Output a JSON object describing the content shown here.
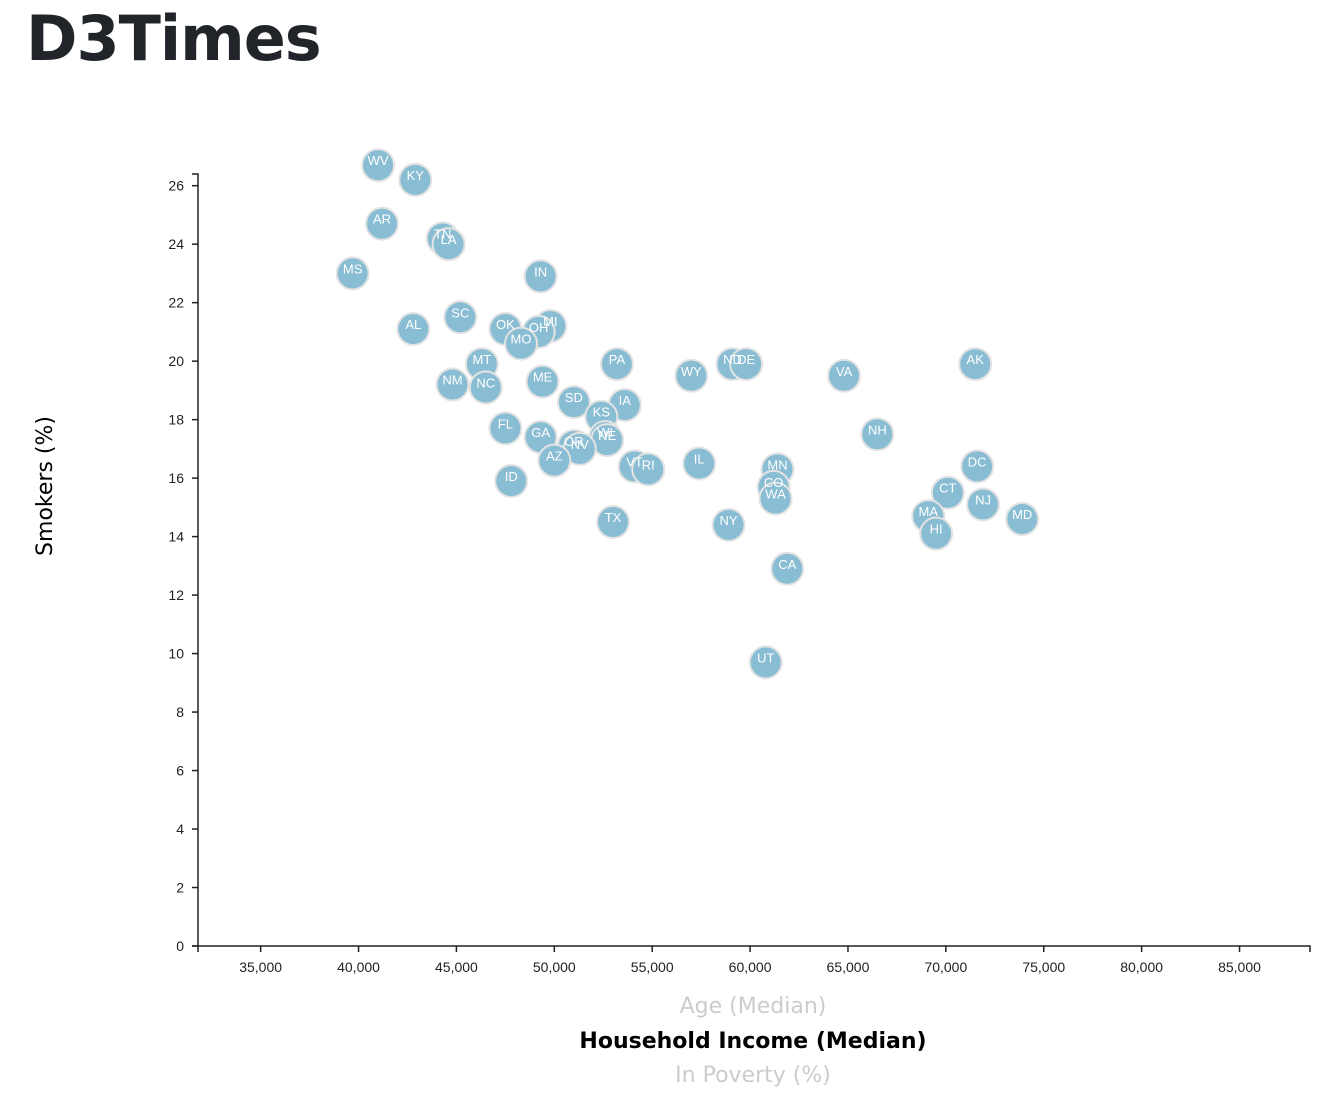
{
  "page": {
    "title": "D3Times"
  },
  "chart_data": {
    "type": "scatter",
    "x_axis_options": [
      {
        "label": "Age (Median)",
        "active": false
      },
      {
        "label": "Household Income (Median)",
        "active": true
      },
      {
        "label": "In Poverty (%)",
        "active": false
      }
    ],
    "ylabel": "Smokers (%)",
    "xlim": [
      31800,
      88600
    ],
    "ylim": [
      0,
      26.4
    ],
    "x_ticks": [
      35000,
      40000,
      45000,
      50000,
      55000,
      60000,
      65000,
      70000,
      75000,
      80000,
      85000
    ],
    "x_tick_labels": [
      "35,000",
      "40,000",
      "45,000",
      "50,000",
      "55,000",
      "60,000",
      "65,000",
      "70,000",
      "75,000",
      "80,000",
      "85,000"
    ],
    "y_ticks": [
      0,
      2,
      4,
      6,
      8,
      10,
      12,
      14,
      16,
      18,
      20,
      22,
      24,
      26
    ],
    "y_tick_labels": [
      "0",
      "2",
      "4",
      "6",
      "8",
      "10",
      "12",
      "14",
      "16",
      "18",
      "20",
      "22",
      "24",
      "26"
    ],
    "marker_color": "#89bdd3",
    "points": [
      {
        "label": "WV",
        "x": 41000,
        "y": 26.7
      },
      {
        "label": "KY",
        "x": 42900,
        "y": 26.2
      },
      {
        "label": "AR",
        "x": 41200,
        "y": 24.7
      },
      {
        "label": "TN",
        "x": 44300,
        "y": 24.2
      },
      {
        "label": "LA",
        "x": 44600,
        "y": 24.0
      },
      {
        "label": "MS",
        "x": 39700,
        "y": 23.0
      },
      {
        "label": "IN",
        "x": 49300,
        "y": 22.9
      },
      {
        "label": "SC",
        "x": 45200,
        "y": 21.5
      },
      {
        "label": "AL",
        "x": 42800,
        "y": 21.1
      },
      {
        "label": "OK",
        "x": 47500,
        "y": 21.1
      },
      {
        "label": "MI",
        "x": 49800,
        "y": 21.2
      },
      {
        "label": "OH",
        "x": 49200,
        "y": 21.0
      },
      {
        "label": "MO",
        "x": 48300,
        "y": 20.6
      },
      {
        "label": "MT",
        "x": 46300,
        "y": 19.9
      },
      {
        "label": "PA",
        "x": 53200,
        "y": 19.9
      },
      {
        "label": "ND",
        "x": 59100,
        "y": 19.9
      },
      {
        "label": "DE",
        "x": 59800,
        "y": 19.9
      },
      {
        "label": "AK",
        "x": 71500,
        "y": 19.9
      },
      {
        "label": "WY",
        "x": 57000,
        "y": 19.5
      },
      {
        "label": "VA",
        "x": 64800,
        "y": 19.5
      },
      {
        "label": "NM",
        "x": 44800,
        "y": 19.2
      },
      {
        "label": "NC",
        "x": 46500,
        "y": 19.1
      },
      {
        "label": "ME",
        "x": 49400,
        "y": 19.3
      },
      {
        "label": "SD",
        "x": 51000,
        "y": 18.6
      },
      {
        "label": "IA",
        "x": 53600,
        "y": 18.5
      },
      {
        "label": "KS",
        "x": 52400,
        "y": 18.1
      },
      {
        "label": "FL",
        "x": 47500,
        "y": 17.7
      },
      {
        "label": "NH",
        "x": 66500,
        "y": 17.5
      },
      {
        "label": "GA",
        "x": 49300,
        "y": 17.4
      },
      {
        "label": "WI",
        "x": 52600,
        "y": 17.4
      },
      {
        "label": "NE",
        "x": 52700,
        "y": 17.3
      },
      {
        "label": "OR",
        "x": 51000,
        "y": 17.1
      },
      {
        "label": "NV",
        "x": 51300,
        "y": 17.0
      },
      {
        "label": "AZ",
        "x": 50000,
        "y": 16.6
      },
      {
        "label": "IL",
        "x": 57400,
        "y": 16.5
      },
      {
        "label": "VT",
        "x": 54100,
        "y": 16.4
      },
      {
        "label": "RI",
        "x": 54800,
        "y": 16.3
      },
      {
        "label": "DC",
        "x": 71600,
        "y": 16.4
      },
      {
        "label": "MN",
        "x": 61400,
        "y": 16.3
      },
      {
        "label": "ID",
        "x": 47800,
        "y": 15.9
      },
      {
        "label": "CO",
        "x": 61200,
        "y": 15.7
      },
      {
        "label": "CT",
        "x": 70100,
        "y": 15.5
      },
      {
        "label": "WA",
        "x": 61300,
        "y": 15.3
      },
      {
        "label": "NJ",
        "x": 71900,
        "y": 15.1
      },
      {
        "label": "MA",
        "x": 69100,
        "y": 14.7
      },
      {
        "label": "MD",
        "x": 73900,
        "y": 14.6
      },
      {
        "label": "TX",
        "x": 53000,
        "y": 14.5
      },
      {
        "label": "NY",
        "x": 58900,
        "y": 14.4
      },
      {
        "label": "HI",
        "x": 69500,
        "y": 14.1
      },
      {
        "label": "CA",
        "x": 61900,
        "y": 12.9
      },
      {
        "label": "UT",
        "x": 60800,
        "y": 9.7
      }
    ]
  }
}
